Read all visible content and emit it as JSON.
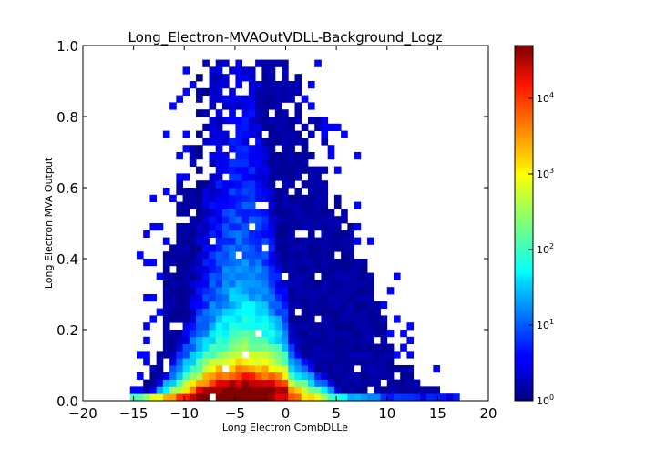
{
  "chart_data": {
    "type": "heatmap",
    "title": "Long_Electron-MVAOutVDLL-Background_Logz",
    "xlabel": "Long Electron CombDLLe",
    "ylabel": "Long Electron MVA Output",
    "xlim": [
      -20,
      20
    ],
    "ylim": [
      0.0,
      1.0
    ],
    "x_ticks": [
      "−20",
      "−15",
      "−10",
      "−5",
      "0",
      "5",
      "10",
      "15",
      "20"
    ],
    "x_tick_values": [
      -20,
      -15,
      -10,
      -5,
      0,
      5,
      10,
      15,
      20
    ],
    "y_ticks": [
      "0.0",
      "0.2",
      "0.4",
      "0.6",
      "0.8",
      "1.0"
    ],
    "y_tick_values": [
      0.0,
      0.2,
      0.4,
      0.6,
      0.8,
      1.0
    ],
    "x_bin_width": 0.65,
    "y_bin_width": 0.02,
    "colorbar": {
      "scale": "log",
      "range": [
        1,
        50000
      ],
      "colormap": "jet",
      "tick_values": [
        1,
        10,
        100,
        1000,
        10000
      ],
      "tick_bases": [
        "10",
        "10",
        "10",
        "10",
        "10"
      ],
      "tick_exponents": [
        "0",
        "1",
        "2",
        "3",
        "4"
      ]
    },
    "density_model": {
      "description_units": "counts per bin, log-scale color",
      "peak_count": 50000,
      "peak_x": -5,
      "peak_y": 0.0,
      "bottom_row_x_range": [
        -16,
        17
      ],
      "grid_x_range": [
        -16,
        17
      ],
      "grid_y_range": [
        0.0,
        0.96
      ]
    }
  }
}
